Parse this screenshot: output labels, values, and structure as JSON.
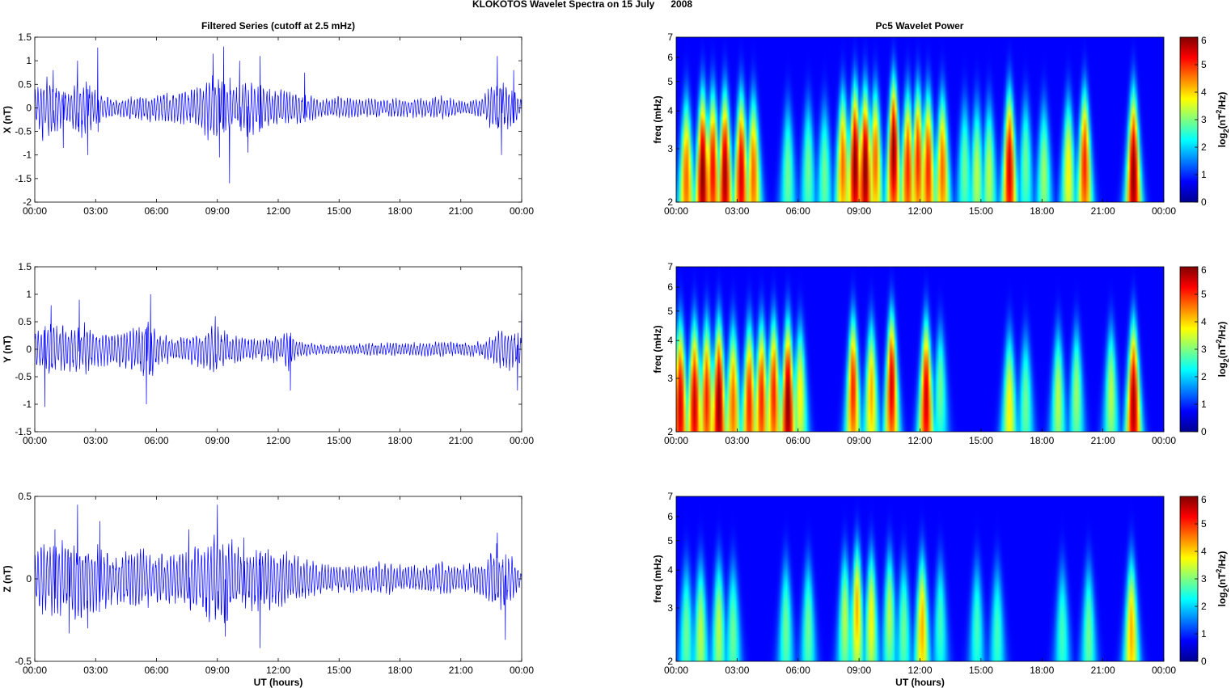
{
  "figure": {
    "title": "KLOKOTOS Wavelet Spectra on 15 July      2008",
    "left_title": "Filtered Series (cutoff at 2.5 mHz)",
    "right_title": "Pc5 Wavelet Power"
  },
  "chart_data": [
    {
      "type": "line",
      "ylabel": "X (nT)",
      "xlabel": "",
      "ylim": [
        -2,
        1.5
      ],
      "yticks": [
        "1.5",
        "1",
        "0.5",
        "0",
        "-0.5",
        "-1",
        "-1.5",
        "-2"
      ],
      "xticks": [
        "00:00",
        "03:00",
        "06:00",
        "09:00",
        "12:00",
        "15:00",
        "18:00",
        "21:00",
        "00:00"
      ],
      "xlim_hours": [
        0,
        24
      ],
      "series_color": "#0000ff",
      "series": [
        {
          "activity": [
            [
              0,
              0.35
            ],
            [
              0.5,
              0.7
            ],
            [
              1,
              0.6
            ],
            [
              1.5,
              0.35
            ],
            [
              2,
              0.5
            ],
            [
              2.3,
              0.65
            ],
            [
              3,
              0.4
            ],
            [
              3.5,
              0.25
            ],
            [
              4,
              0.2
            ],
            [
              5,
              0.25
            ],
            [
              6,
              0.3
            ],
            [
              7,
              0.35
            ],
            [
              8,
              0.4
            ],
            [
              8.6,
              0.7
            ],
            [
              9,
              0.75
            ],
            [
              9.5,
              0.5
            ],
            [
              10,
              0.45
            ],
            [
              10.5,
              0.6
            ],
            [
              11,
              0.5
            ],
            [
              12,
              0.4
            ],
            [
              13,
              0.35
            ],
            [
              14,
              0.2
            ],
            [
              15,
              0.25
            ],
            [
              16,
              0.2
            ],
            [
              17,
              0.2
            ],
            [
              18,
              0.2
            ],
            [
              19,
              0.2
            ],
            [
              20,
              0.25
            ],
            [
              21,
              0.15
            ],
            [
              22,
              0.2
            ],
            [
              22.8,
              0.6
            ],
            [
              23.3,
              0.45
            ],
            [
              24,
              0.2
            ]
          ],
          "spikes": [
            [
              0.4,
              -0.7
            ],
            [
              0.9,
              0.8
            ],
            [
              1.4,
              -0.85
            ],
            [
              2.1,
              1.0
            ],
            [
              2.6,
              -1.0
            ],
            [
              3.1,
              1.28
            ],
            [
              8.8,
              1.15
            ],
            [
              9.1,
              -1.05
            ],
            [
              9.3,
              1.3
            ],
            [
              9.6,
              -1.6
            ],
            [
              10.1,
              1.0
            ],
            [
              10.5,
              -0.95
            ],
            [
              11.1,
              1.1
            ],
            [
              13.3,
              0.75
            ],
            [
              22.8,
              1.1
            ],
            [
              23.0,
              -1.0
            ],
            [
              23.6,
              0.8
            ]
          ]
        }
      ]
    },
    {
      "type": "line",
      "ylabel": "Y (nT)",
      "xlabel": "",
      "ylim": [
        -1.5,
        1.5
      ],
      "yticks": [
        "1.5",
        "1",
        "0.5",
        "0",
        "-0.5",
        "-1",
        "-1.5"
      ],
      "xticks": [
        "00:00",
        "03:00",
        "06:00",
        "09:00",
        "12:00",
        "15:00",
        "18:00",
        "21:00",
        "00:00"
      ],
      "xlim_hours": [
        0,
        24
      ],
      "series_color": "#0000ff",
      "series": [
        {
          "activity": [
            [
              0,
              0.35
            ],
            [
              0.5,
              0.5
            ],
            [
              1,
              0.45
            ],
            [
              2,
              0.4
            ],
            [
              2.5,
              0.5
            ],
            [
              3,
              0.3
            ],
            [
              4,
              0.3
            ],
            [
              5,
              0.4
            ],
            [
              5.6,
              0.6
            ],
            [
              6,
              0.3
            ],
            [
              7,
              0.2
            ],
            [
              8,
              0.3
            ],
            [
              8.8,
              0.45
            ],
            [
              9.5,
              0.3
            ],
            [
              10,
              0.25
            ],
            [
              11,
              0.2
            ],
            [
              12,
              0.25
            ],
            [
              12.5,
              0.4
            ],
            [
              13,
              0.15
            ],
            [
              14,
              0.1
            ],
            [
              15,
              0.08
            ],
            [
              16,
              0.1
            ],
            [
              17,
              0.12
            ],
            [
              18,
              0.12
            ],
            [
              19,
              0.12
            ],
            [
              20,
              0.15
            ],
            [
              21,
              0.12
            ],
            [
              22,
              0.15
            ],
            [
              23,
              0.35
            ],
            [
              23.5,
              0.4
            ],
            [
              24,
              0.25
            ]
          ],
          "spikes": [
            [
              0.5,
              -1.05
            ],
            [
              0.8,
              0.8
            ],
            [
              2.2,
              -1.05
            ],
            [
              2.2,
              0.9
            ],
            [
              5.5,
              -1.0
            ],
            [
              5.7,
              1.0
            ],
            [
              8.9,
              -0.85
            ],
            [
              8.9,
              0.6
            ],
            [
              12.6,
              -0.75
            ],
            [
              23.8,
              -0.75
            ],
            [
              24.0,
              0.7
            ]
          ]
        }
      ]
    },
    {
      "type": "line",
      "ylabel": "Z (nT)",
      "xlabel": "UT (hours)",
      "ylim": [
        -0.5,
        0.5
      ],
      "yticks": [
        "0.5",
        "0",
        "-0.5"
      ],
      "xticks": [
        "00:00",
        "03:00",
        "06:00",
        "09:00",
        "12:00",
        "15:00",
        "18:00",
        "21:00",
        "00:00"
      ],
      "xlim_hours": [
        0,
        24
      ],
      "series_color": "#0000ff",
      "series": [
        {
          "activity": [
            [
              0,
              0.15
            ],
            [
              0.5,
              0.25
            ],
            [
              1,
              0.2
            ],
            [
              2,
              0.25
            ],
            [
              3,
              0.2
            ],
            [
              4,
              0.15
            ],
            [
              5,
              0.18
            ],
            [
              6,
              0.15
            ],
            [
              7,
              0.15
            ],
            [
              8,
              0.22
            ],
            [
              8.8,
              0.3
            ],
            [
              9.5,
              0.25
            ],
            [
              10,
              0.2
            ],
            [
              11,
              0.2
            ],
            [
              12,
              0.18
            ],
            [
              13,
              0.15
            ],
            [
              14,
              0.1
            ],
            [
              15,
              0.08
            ],
            [
              16,
              0.08
            ],
            [
              17,
              0.1
            ],
            [
              18,
              0.08
            ],
            [
              19,
              0.08
            ],
            [
              20,
              0.1
            ],
            [
              21,
              0.08
            ],
            [
              22,
              0.1
            ],
            [
              22.8,
              0.2
            ],
            [
              23.4,
              0.15
            ],
            [
              24,
              0.05
            ]
          ],
          "spikes": [
            [
              1.0,
              0.3
            ],
            [
              1.7,
              -0.33
            ],
            [
              2.1,
              0.45
            ],
            [
              2.6,
              -0.3
            ],
            [
              3.2,
              0.35
            ],
            [
              7.6,
              0.3
            ],
            [
              9.0,
              0.45
            ],
            [
              9.4,
              -0.35
            ],
            [
              10.3,
              0.25
            ],
            [
              11.1,
              -0.42
            ],
            [
              22.8,
              0.28
            ],
            [
              23.2,
              -0.37
            ]
          ]
        }
      ]
    },
    {
      "type": "heatmap",
      "title": "Pc5 Wavelet Power",
      "ylabel": "freq (mHz)",
      "xlabel": "",
      "ylim_mHz": [
        2,
        7
      ],
      "yscale": "log",
      "yticks": [
        "7",
        "6",
        "5",
        "4",
        "3",
        "2"
      ],
      "xticks": [
        "00:00",
        "03:00",
        "06:00",
        "09:00",
        "12:00",
        "15:00",
        "18:00",
        "21:00",
        "00:00"
      ],
      "colorbar": {
        "label": "log2(nT2/Hz)",
        "range": [
          0,
          6
        ],
        "ticks": [
          "6",
          "5",
          "4",
          "3",
          "2",
          "1",
          "0"
        ]
      },
      "blobs": [
        [
          0.5,
          2.4,
          4.5
        ],
        [
          1.3,
          2.5,
          6
        ],
        [
          1.8,
          2.6,
          5.2
        ],
        [
          2.4,
          2.5,
          5.8
        ],
        [
          3.2,
          2.5,
          5.5
        ],
        [
          3.8,
          2.5,
          4.5
        ],
        [
          5.5,
          2.5,
          2.5
        ],
        [
          6.5,
          2.6,
          2.5
        ],
        [
          7.3,
          2.5,
          2.5
        ],
        [
          8.2,
          2.7,
          4.5
        ],
        [
          8.8,
          2.7,
          6
        ],
        [
          9.3,
          2.6,
          6
        ],
        [
          9.8,
          2.8,
          4.5
        ],
        [
          10.7,
          3.0,
          6
        ],
        [
          11.4,
          2.6,
          5
        ],
        [
          11.9,
          2.8,
          5
        ],
        [
          12.4,
          2.6,
          5
        ],
        [
          13.1,
          2.6,
          4.5
        ],
        [
          14.2,
          2.6,
          2.5
        ],
        [
          14.8,
          2.5,
          3
        ],
        [
          15.4,
          2.5,
          3
        ],
        [
          16.4,
          2.6,
          5.5
        ],
        [
          17.2,
          2.7,
          2.5
        ],
        [
          18.1,
          2.5,
          2.8
        ],
        [
          19.3,
          2.6,
          3.5
        ],
        [
          20.1,
          2.7,
          5
        ],
        [
          22.5,
          2.5,
          6
        ]
      ]
    },
    {
      "type": "heatmap",
      "title": "",
      "ylabel": "freq (mHz)",
      "xlabel": "",
      "ylim_mHz": [
        2,
        7
      ],
      "yscale": "log",
      "yticks": [
        "7",
        "6",
        "5",
        "4",
        "3",
        "2"
      ],
      "xticks": [
        "00:00",
        "03:00",
        "06:00",
        "09:00",
        "12:00",
        "15:00",
        "18:00",
        "21:00",
        "00:00"
      ],
      "colorbar": {
        "label": "log2(nT2/Hz)",
        "range": [
          0,
          6
        ],
        "ticks": [
          "6",
          "5",
          "4",
          "3",
          "2",
          "1",
          "0"
        ]
      },
      "blobs": [
        [
          0.2,
          2.5,
          5.5
        ],
        [
          0.9,
          2.5,
          5.5
        ],
        [
          1.5,
          2.6,
          5
        ],
        [
          2.1,
          2.5,
          6
        ],
        [
          2.8,
          2.5,
          4.5
        ],
        [
          3.6,
          2.5,
          5
        ],
        [
          4.2,
          2.6,
          5
        ],
        [
          4.8,
          2.7,
          5
        ],
        [
          5.5,
          2.5,
          6
        ],
        [
          6.1,
          2.7,
          3.5
        ],
        [
          8.7,
          2.8,
          5
        ],
        [
          9.6,
          2.7,
          4
        ],
        [
          10.6,
          2.9,
          5.5
        ],
        [
          12.3,
          2.6,
          5.5
        ],
        [
          13.0,
          2.8,
          2.5
        ],
        [
          16.4,
          2.4,
          3.5
        ],
        [
          17.2,
          2.5,
          2.5
        ],
        [
          18.8,
          2.6,
          3
        ],
        [
          19.7,
          2.7,
          2.8
        ],
        [
          21.4,
          2.7,
          3
        ],
        [
          22.5,
          2.5,
          5.8
        ]
      ]
    },
    {
      "type": "heatmap",
      "title": "",
      "ylabel": "freq (mHz)",
      "xlabel": "UT (hours)",
      "ylim_mHz": [
        2,
        7
      ],
      "yscale": "log",
      "yticks": [
        "7",
        "6",
        "5",
        "4",
        "3",
        "2"
      ],
      "xticks": [
        "00:00",
        "03:00",
        "06:00",
        "09:00",
        "12:00",
        "15:00",
        "18:00",
        "21:00",
        "00:00"
      ],
      "colorbar": {
        "label": "log2(nT2/Hz)",
        "range": [
          0,
          6
        ],
        "ticks": [
          "6",
          "5",
          "4",
          "3",
          "2",
          "1",
          "0"
        ]
      },
      "blobs": [
        [
          0.5,
          2.5,
          2.5
        ],
        [
          1.2,
          2.5,
          3
        ],
        [
          2.1,
          2.6,
          3
        ],
        [
          2.8,
          2.5,
          2.5
        ],
        [
          5.4,
          2.6,
          2.5
        ],
        [
          6.5,
          2.6,
          2.5
        ],
        [
          8.3,
          2.8,
          3
        ],
        [
          8.9,
          3.0,
          4
        ],
        [
          9.6,
          2.8,
          3.5
        ],
        [
          10.5,
          2.9,
          3
        ],
        [
          11.2,
          2.6,
          2.5
        ],
        [
          12.1,
          2.6,
          4
        ],
        [
          13.0,
          2.7,
          2.2
        ],
        [
          14.8,
          2.6,
          2.2
        ],
        [
          15.8,
          2.5,
          2.2
        ],
        [
          19.0,
          2.5,
          2.2
        ],
        [
          20.3,
          2.5,
          2.5
        ],
        [
          22.4,
          2.5,
          4
        ]
      ]
    }
  ]
}
